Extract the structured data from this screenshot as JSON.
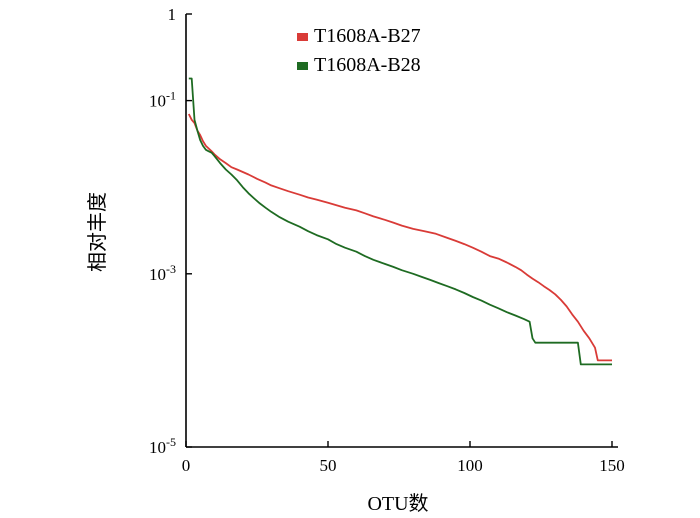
{
  "chart_data": {
    "type": "line",
    "xlabel": "OTU数",
    "ylabel": "相对丰度",
    "xlim": [
      0,
      150
    ],
    "ylim_log10": [
      -5,
      0
    ],
    "y_scale": "log",
    "x_ticks": [
      {
        "value": 0,
        "label": "0"
      },
      {
        "value": 50,
        "label": "50"
      },
      {
        "value": 100,
        "label": "100"
      },
      {
        "value": 150,
        "label": "150"
      }
    ],
    "y_ticks": [
      {
        "exp": 0,
        "base": "1",
        "sup": ""
      },
      {
        "exp": -1,
        "base": "10",
        "sup": "-1"
      },
      {
        "exp": -3,
        "base": "10",
        "sup": "-3"
      },
      {
        "exp": -5,
        "base": "10",
        "sup": "-5"
      }
    ],
    "legend_position": "top-center",
    "grid": false,
    "series": [
      {
        "name": "T1608A-B27",
        "color": "#d93b37",
        "points": [
          [
            1,
            0.07
          ],
          [
            2,
            0.06
          ],
          [
            3,
            0.055
          ],
          [
            4,
            0.045
          ],
          [
            5,
            0.04
          ],
          [
            6,
            0.034
          ],
          [
            7,
            0.03
          ],
          [
            8,
            0.028
          ],
          [
            9,
            0.026
          ],
          [
            10,
            0.024
          ],
          [
            12,
            0.021
          ],
          [
            14,
            0.019
          ],
          [
            16,
            0.017
          ],
          [
            18,
            0.016
          ],
          [
            20,
            0.015
          ],
          [
            22,
            0.014
          ],
          [
            25,
            0.0125
          ],
          [
            28,
            0.0113
          ],
          [
            30,
            0.0105
          ],
          [
            33,
            0.0097
          ],
          [
            36,
            0.009
          ],
          [
            40,
            0.0082
          ],
          [
            43,
            0.0076
          ],
          [
            46,
            0.0072
          ],
          [
            50,
            0.0066
          ],
          [
            53,
            0.0062
          ],
          [
            56,
            0.0058
          ],
          [
            60,
            0.0054
          ],
          [
            63,
            0.005
          ],
          [
            66,
            0.0046
          ],
          [
            70,
            0.0042
          ],
          [
            73,
            0.0039
          ],
          [
            76,
            0.0036
          ],
          [
            80,
            0.0033
          ],
          [
            84,
            0.0031
          ],
          [
            88,
            0.0029
          ],
          [
            92,
            0.0026
          ],
          [
            95,
            0.0024
          ],
          [
            98,
            0.0022
          ],
          [
            101,
            0.002
          ],
          [
            104,
            0.0018
          ],
          [
            107,
            0.0016
          ],
          [
            110,
            0.0015
          ],
          [
            113,
            0.00135
          ],
          [
            116,
            0.0012
          ],
          [
            118,
            0.0011
          ],
          [
            120,
            0.00098
          ],
          [
            122,
            0.00088
          ],
          [
            124,
            0.0008
          ],
          [
            126,
            0.00072
          ],
          [
            128,
            0.00065
          ],
          [
            130,
            0.00058
          ],
          [
            132,
            0.0005
          ],
          [
            134,
            0.00042
          ],
          [
            136,
            0.00034
          ],
          [
            138,
            0.00028
          ],
          [
            140,
            0.00022
          ],
          [
            142,
            0.00018
          ],
          [
            144,
            0.00014
          ],
          [
            145,
            0.0001
          ],
          [
            146,
            0.0001
          ],
          [
            147,
            0.0001
          ],
          [
            148,
            0.0001
          ],
          [
            149,
            0.0001
          ],
          [
            150,
            0.0001
          ]
        ]
      },
      {
        "name": "T1608A-B28",
        "color": "#1e6b22",
        "points": [
          [
            1,
            0.18
          ],
          [
            2,
            0.18
          ],
          [
            3,
            0.06
          ],
          [
            4,
            0.045
          ],
          [
            5,
            0.035
          ],
          [
            6,
            0.03
          ],
          [
            7,
            0.027
          ],
          [
            8,
            0.026
          ],
          [
            9,
            0.025
          ],
          [
            10,
            0.023
          ],
          [
            12,
            0.019
          ],
          [
            14,
            0.016
          ],
          [
            16,
            0.014
          ],
          [
            18,
            0.012
          ],
          [
            20,
            0.01
          ],
          [
            22,
            0.0085
          ],
          [
            24,
            0.0074
          ],
          [
            26,
            0.0065
          ],
          [
            28,
            0.0058
          ],
          [
            30,
            0.0052
          ],
          [
            33,
            0.0045
          ],
          [
            36,
            0.004
          ],
          [
            40,
            0.0035
          ],
          [
            43,
            0.0031
          ],
          [
            46,
            0.0028
          ],
          [
            50,
            0.0025
          ],
          [
            53,
            0.0022
          ],
          [
            56,
            0.002
          ],
          [
            60,
            0.0018
          ],
          [
            63,
            0.0016
          ],
          [
            66,
            0.00145
          ],
          [
            70,
            0.0013
          ],
          [
            73,
            0.0012
          ],
          [
            76,
            0.0011
          ],
          [
            80,
            0.001
          ],
          [
            83,
            0.00092
          ],
          [
            86,
            0.00085
          ],
          [
            89,
            0.00078
          ],
          [
            92,
            0.00072
          ],
          [
            95,
            0.00066
          ],
          [
            98,
            0.0006
          ],
          [
            101,
            0.00054
          ],
          [
            104,
            0.00049
          ],
          [
            107,
            0.00044
          ],
          [
            110,
            0.0004
          ],
          [
            113,
            0.00036
          ],
          [
            116,
            0.00033
          ],
          [
            119,
            0.0003
          ],
          [
            121,
            0.00028
          ],
          [
            122,
            0.00018
          ],
          [
            123,
            0.00016
          ],
          [
            125,
            0.00016
          ],
          [
            130,
            0.00016
          ],
          [
            135,
            0.00016
          ],
          [
            138,
            0.00016
          ],
          [
            139,
            9e-05
          ],
          [
            140,
            9e-05
          ],
          [
            145,
            9e-05
          ],
          [
            150,
            9e-05
          ]
        ]
      }
    ]
  }
}
